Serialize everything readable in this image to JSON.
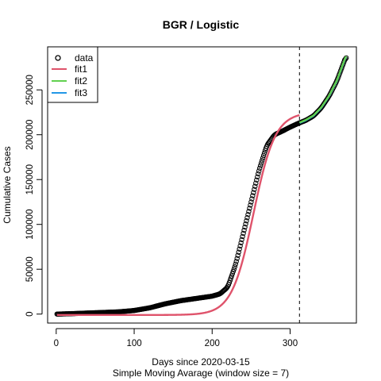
{
  "chart_data": {
    "type": "line",
    "title": "BGR / Logistic",
    "xlabel": "Days since 2020-03-15",
    "xlabel2": "Simple Moving Avarage (window size = 7)",
    "ylabel": "Cumulative Cases",
    "xlim": [
      -11,
      385
    ],
    "ylim": [
      -10000,
      298000
    ],
    "x_ticks": [
      0,
      100,
      200,
      300
    ],
    "y_ticks": [
      0,
      50000,
      100000,
      150000,
      200000,
      250000
    ],
    "vline_x": 312,
    "legend": {
      "position": "top-left",
      "entries": [
        {
          "label": "data",
          "style": "circle",
          "color": "#000000"
        },
        {
          "label": "fit1",
          "style": "line",
          "color": "#DF536B"
        },
        {
          "label": "fit2",
          "style": "line",
          "color": "#61D04F"
        },
        {
          "label": "fit3",
          "style": "line",
          "color": "#2297E6"
        }
      ]
    },
    "series": [
      {
        "name": "data",
        "style": "points",
        "color": "#000000",
        "x_range": [
          1,
          372
        ],
        "anchors": {
          "x": [
            1,
            20,
            50,
            80,
            100,
            120,
            140,
            160,
            180,
            200,
            210,
            220,
            230,
            240,
            250,
            260,
            270,
            280,
            290,
            300,
            310,
            320,
            330,
            340,
            350,
            360,
            372
          ],
          "y": [
            0,
            500,
            1500,
            2500,
            4000,
            7000,
            11500,
            15000,
            17500,
            20000,
            22500,
            30000,
            55000,
            90000,
            125000,
            160000,
            188000,
            200000,
            204000,
            208500,
            212500,
            216000,
            221000,
            230000,
            243000,
            260000,
            288000
          ]
        }
      },
      {
        "name": "fit1",
        "style": "line",
        "color": "#DF536B",
        "model": "logistic",
        "params": {
          "K": 226000,
          "r": 0.072,
          "t0": 253,
          "base": -1000
        },
        "x_range": [
          1,
          312
        ]
      },
      {
        "name": "fit2",
        "style": "line",
        "color": "#61D04F",
        "x_range": [
          312,
          372
        ],
        "anchors": {
          "x": [
            312,
            320,
            330,
            340,
            350,
            360,
            372
          ],
          "y": [
            213500,
            216500,
            221500,
            230500,
            243500,
            260500,
            288500
          ]
        }
      },
      {
        "name": "fit3",
        "style": "line",
        "color": "#2297E6",
        "x_range": [
          312,
          372
        ],
        "anchors": {
          "x": [
            312,
            320,
            330,
            340,
            350,
            360,
            372
          ],
          "y": [
            213000,
            216000,
            221000,
            230000,
            243000,
            260000,
            288000
          ]
        }
      }
    ]
  }
}
